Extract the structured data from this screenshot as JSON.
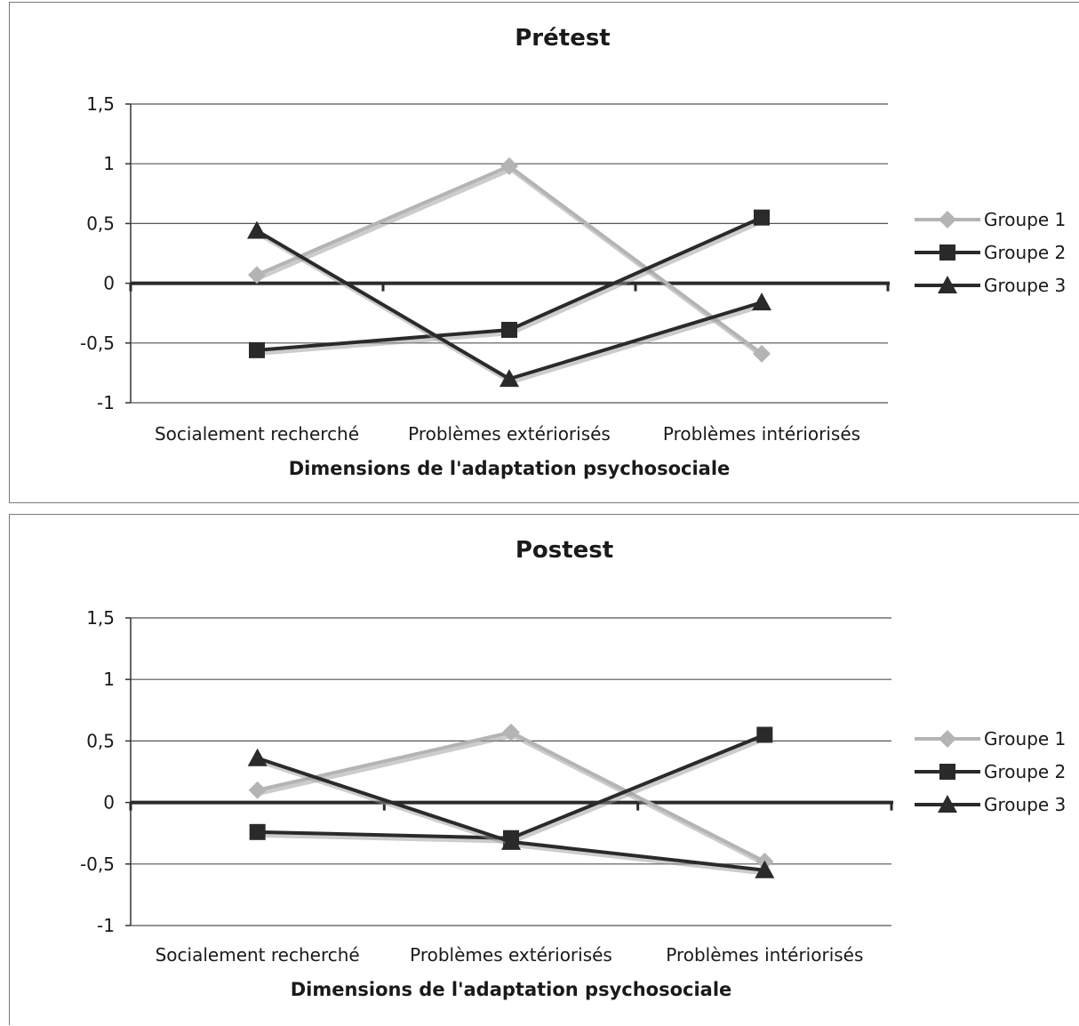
{
  "chart_data": [
    {
      "type": "line",
      "title": "Prétest",
      "xlabel": "Dimensions de l'adaptation psychosociale",
      "ylabel": "",
      "categories": [
        "Socialement recherché",
        "Problèmes extériorisés",
        "Problèmes intériorisés"
      ],
      "ylim": [
        -1,
        1.5
      ],
      "yticks": [
        "1,5",
        "1",
        "0,5",
        "0",
        "-0,5",
        "-1"
      ],
      "ytick_values": [
        1.5,
        1,
        0.5,
        0,
        -0.5,
        -1
      ],
      "grid": true,
      "legend": "right",
      "series": [
        {
          "name": "Groupe 1",
          "values": [
            0.07,
            0.98,
            -0.59
          ],
          "color": "#b4b4b4",
          "marker": "diamond"
        },
        {
          "name": "Groupe 2",
          "values": [
            -0.56,
            -0.39,
            0.55
          ],
          "color": "#2a2a2a",
          "marker": "square"
        },
        {
          "name": "Groupe 3",
          "values": [
            0.44,
            -0.8,
            -0.16
          ],
          "color": "#2a2a2a",
          "marker": "triangle"
        }
      ]
    },
    {
      "type": "line",
      "title": "Postest",
      "xlabel": "Dimensions de l'adaptation psychosociale",
      "ylabel": "",
      "categories": [
        "Socialement recherché",
        "Problèmes extériorisés",
        "Problèmes intériorisés"
      ],
      "ylim": [
        -1,
        1.5
      ],
      "yticks": [
        "1,5",
        "1",
        "0,5",
        "0",
        "-0,5",
        "-1"
      ],
      "ytick_values": [
        1.5,
        1,
        0.5,
        0,
        -0.5,
        -1
      ],
      "grid": true,
      "legend": "right",
      "series": [
        {
          "name": "Groupe 1",
          "values": [
            0.1,
            0.57,
            -0.48
          ],
          "color": "#b4b4b4",
          "marker": "diamond"
        },
        {
          "name": "Groupe 2",
          "values": [
            -0.24,
            -0.29,
            0.55
          ],
          "color": "#2a2a2a",
          "marker": "square"
        },
        {
          "name": "Groupe 3",
          "values": [
            0.36,
            -0.32,
            -0.55
          ],
          "color": "#2a2a2a",
          "marker": "triangle"
        }
      ]
    }
  ]
}
